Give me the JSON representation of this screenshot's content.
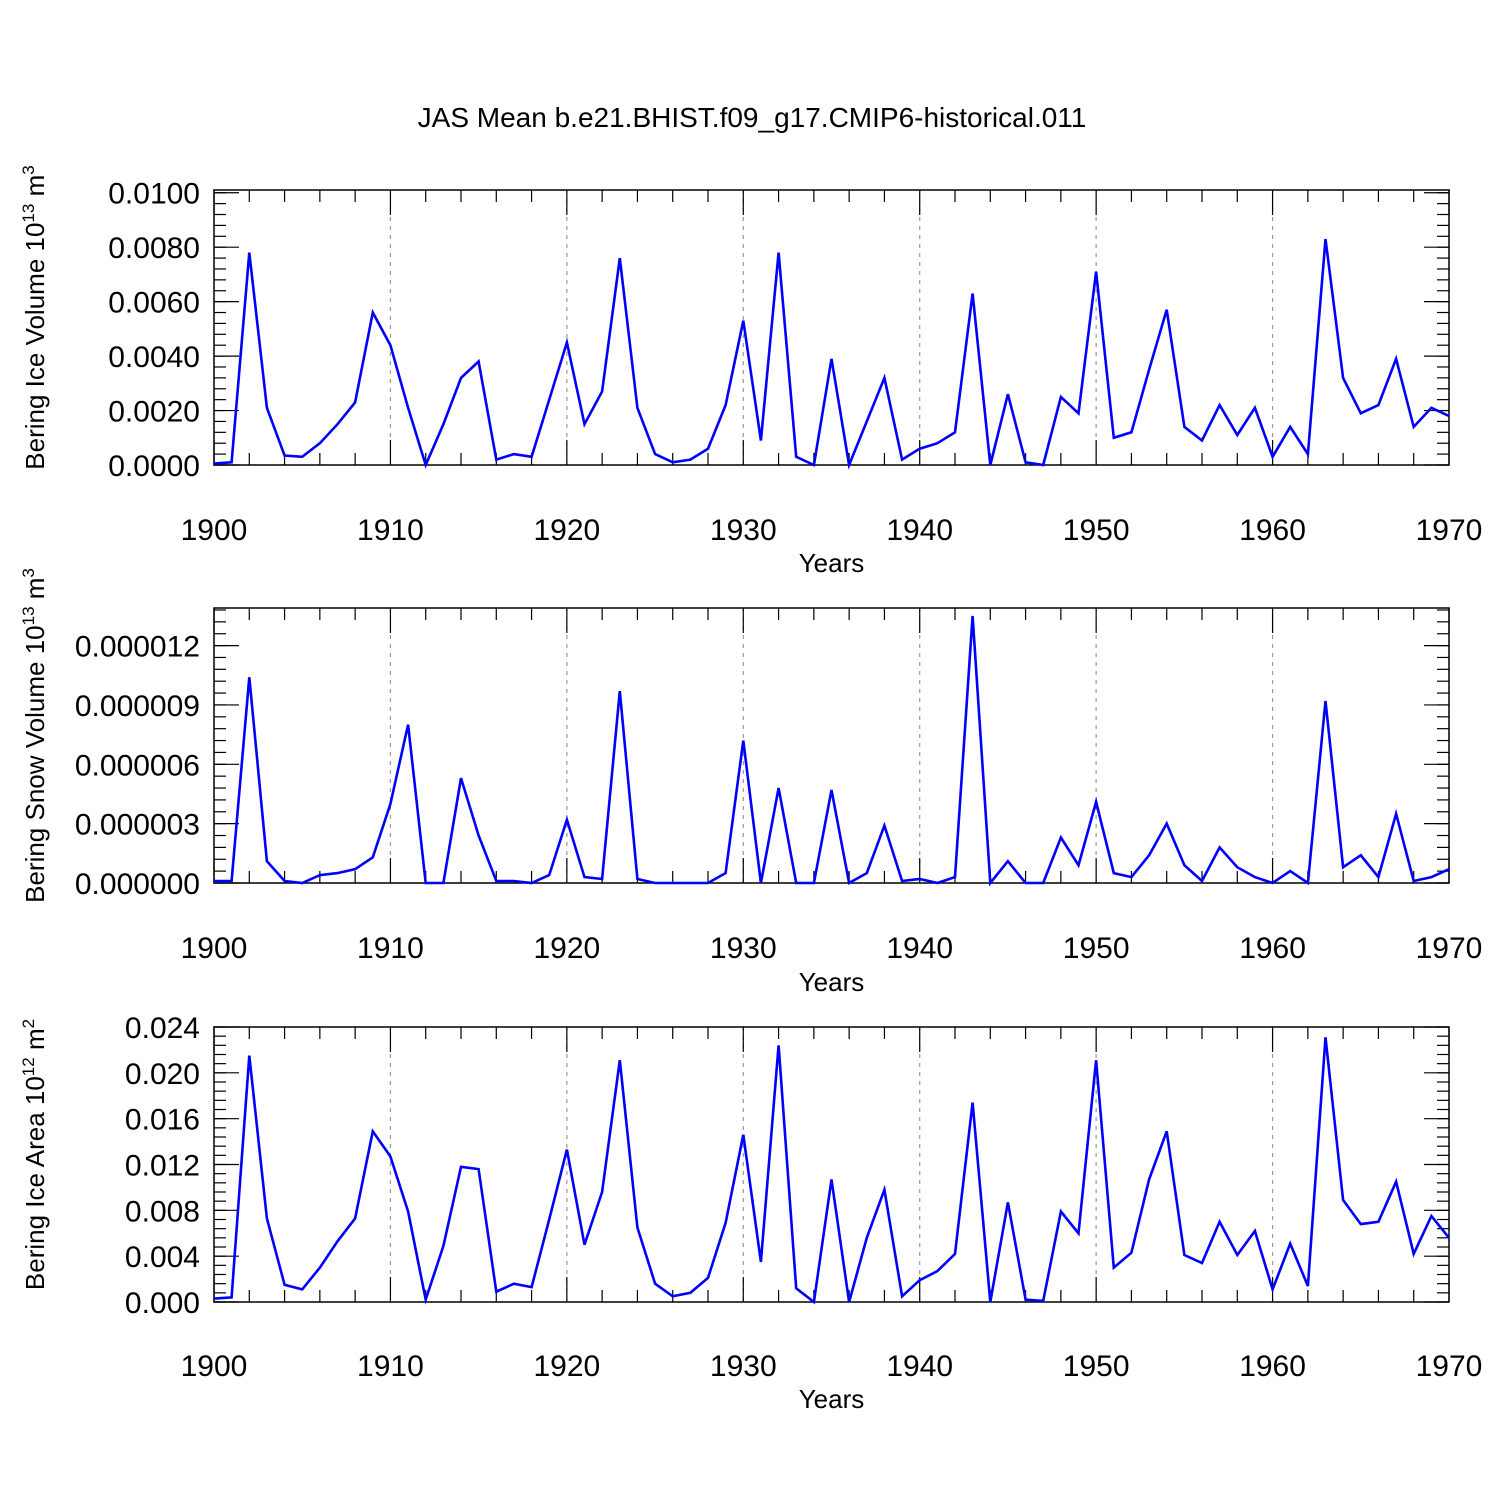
{
  "title": "JAS Mean b.e21.BHIST.f09_g17.CMIP6-historical.011",
  "line_color": "#0000ff",
  "chart_data": [
    {
      "type": "line",
      "ylabel": "Bering Ice Volume 10",
      "ylabel_sup": "13",
      "ylabel_unit": " m",
      "ylabel_unit_sup": "3",
      "xlabel": "Years",
      "xlim": [
        1900,
        1970
      ],
      "ylim": [
        0.0,
        0.0101
      ],
      "xticks": [
        1900,
        1910,
        1920,
        1930,
        1940,
        1950,
        1960,
        1970
      ],
      "yticks": [
        0.0,
        0.002,
        0.004,
        0.006,
        0.008,
        0.01
      ],
      "ytick_labels": [
        "0.0000",
        "0.0020",
        "0.0040",
        "0.0060",
        "0.0080",
        "0.0100"
      ],
      "grid": "vertical dashed at major x ticks",
      "x": [
        1900,
        1901,
        1902,
        1903,
        1904,
        1905,
        1906,
        1907,
        1908,
        1909,
        1910,
        1911,
        1912,
        1913,
        1914,
        1915,
        1916,
        1917,
        1918,
        1919,
        1920,
        1921,
        1922,
        1923,
        1924,
        1925,
        1926,
        1927,
        1928,
        1929,
        1930,
        1931,
        1932,
        1933,
        1934,
        1935,
        1936,
        1937,
        1938,
        1939,
        1940,
        1941,
        1942,
        1943,
        1944,
        1945,
        1946,
        1947,
        1948,
        1949,
        1950,
        1951,
        1952,
        1953,
        1954,
        1955,
        1956,
        1957,
        1958,
        1959,
        1960,
        1961,
        1962,
        1963,
        1964,
        1965,
        1966,
        1967,
        1968,
        1969,
        1970
      ],
      "y": [
        5e-05,
        0.0001,
        0.0078,
        0.0021,
        0.00035,
        0.0003,
        0.0008,
        0.0015,
        0.0023,
        0.0056,
        0.0044,
        0.0021,
        0.0,
        0.0015,
        0.0032,
        0.0038,
        0.0002,
        0.0004,
        0.0003,
        0.0024,
        0.0045,
        0.0015,
        0.0027,
        0.0076,
        0.0021,
        0.0004,
        0.0001,
        0.0002,
        0.0006,
        0.0022,
        0.0053,
        0.0009,
        0.0078,
        0.0003,
        0.0,
        0.0039,
        0.0,
        0.0016,
        0.0032,
        0.0002,
        0.0006,
        0.0008,
        0.0012,
        0.0063,
        0.0,
        0.0026,
        0.0001,
        0.0,
        0.0025,
        0.0019,
        0.0071,
        0.001,
        0.0012,
        0.0035,
        0.0057,
        0.0014,
        0.0009,
        0.0022,
        0.0011,
        0.0021,
        0.0003,
        0.0014,
        0.0004,
        0.0083,
        0.0032,
        0.0019,
        0.0022,
        0.0039,
        0.0014,
        0.0021,
        0.0018
      ]
    },
    {
      "type": "line",
      "ylabel": "Bering Snow Volume 10",
      "ylabel_sup": "13",
      "ylabel_unit": " m",
      "ylabel_unit_sup": "3",
      "xlabel": "Years",
      "xlim": [
        1900,
        1970
      ],
      "ylim": [
        0.0,
        1.39e-05
      ],
      "xticks": [
        1900,
        1910,
        1920,
        1930,
        1940,
        1950,
        1960,
        1970
      ],
      "yticks": [
        0.0,
        3e-06,
        6e-06,
        9e-06,
        1.2e-05
      ],
      "ytick_labels": [
        "0.000000",
        "0.000003",
        "0.000006",
        "0.000009",
        "0.000012"
      ],
      "grid": "vertical dashed at major x ticks",
      "x": [
        1900,
        1901,
        1902,
        1903,
        1904,
        1905,
        1906,
        1907,
        1908,
        1909,
        1910,
        1911,
        1912,
        1913,
        1914,
        1915,
        1916,
        1917,
        1918,
        1919,
        1920,
        1921,
        1922,
        1923,
        1924,
        1925,
        1926,
        1927,
        1928,
        1929,
        1930,
        1931,
        1932,
        1933,
        1934,
        1935,
        1936,
        1937,
        1938,
        1939,
        1940,
        1941,
        1942,
        1943,
        1944,
        1945,
        1946,
        1947,
        1948,
        1949,
        1950,
        1951,
        1952,
        1953,
        1954,
        1955,
        1956,
        1957,
        1958,
        1959,
        1960,
        1961,
        1962,
        1963,
        1964,
        1965,
        1966,
        1967,
        1968,
        1969,
        1970
      ],
      "y": [
        1e-07,
        1e-07,
        1.04e-05,
        1.1e-06,
        1e-07,
        0.0,
        4e-07,
        5e-07,
        7e-07,
        1.3e-06,
        4e-06,
        8e-06,
        0.0,
        0.0,
        5.3e-06,
        2.4e-06,
        1e-07,
        1e-07,
        0.0,
        4e-07,
        3.2e-06,
        3e-07,
        2e-07,
        9.7e-06,
        2e-07,
        0.0,
        0.0,
        0.0,
        0.0,
        5e-07,
        7.2e-06,
        0.0,
        4.8e-06,
        0.0,
        0.0,
        4.7e-06,
        0.0,
        5e-07,
        2.9e-06,
        1e-07,
        2e-07,
        0.0,
        3e-07,
        1.35e-05,
        0.0,
        1.1e-06,
        0.0,
        0.0,
        2.3e-06,
        9e-07,
        4.1e-06,
        5e-07,
        3e-07,
        1.4e-06,
        3e-06,
        9e-07,
        1e-07,
        1.8e-06,
        8e-07,
        3e-07,
        0.0,
        6e-07,
        0.0,
        9.2e-06,
        8e-07,
        1.4e-06,
        3e-07,
        3.5e-06,
        1e-07,
        3e-07,
        7e-07
      ]
    },
    {
      "type": "line",
      "ylabel": "Bering Ice Area 10",
      "ylabel_sup": "12",
      "ylabel_unit": " m",
      "ylabel_unit_sup": "2",
      "xlabel": "Years",
      "xlim": [
        1900,
        1970
      ],
      "ylim": [
        0.0,
        0.024
      ],
      "xticks": [
        1900,
        1910,
        1920,
        1930,
        1940,
        1950,
        1960,
        1970
      ],
      "yticks": [
        0.0,
        0.004,
        0.008,
        0.012,
        0.016,
        0.02,
        0.024
      ],
      "ytick_labels": [
        "0.000",
        "0.004",
        "0.008",
        "0.012",
        "0.016",
        "0.020",
        "0.024"
      ],
      "grid": "vertical dashed at major x ticks",
      "x": [
        1900,
        1901,
        1902,
        1903,
        1904,
        1905,
        1906,
        1907,
        1908,
        1909,
        1910,
        1911,
        1912,
        1913,
        1914,
        1915,
        1916,
        1917,
        1918,
        1919,
        1920,
        1921,
        1922,
        1923,
        1924,
        1925,
        1926,
        1927,
        1928,
        1929,
        1930,
        1931,
        1932,
        1933,
        1934,
        1935,
        1936,
        1937,
        1938,
        1939,
        1940,
        1941,
        1942,
        1943,
        1944,
        1945,
        1946,
        1947,
        1948,
        1949,
        1950,
        1951,
        1952,
        1953,
        1954,
        1955,
        1956,
        1957,
        1958,
        1959,
        1960,
        1961,
        1962,
        1963,
        1964,
        1965,
        1966,
        1967,
        1968,
        1969,
        1970
      ],
      "y": [
        0.0003,
        0.0004,
        0.0215,
        0.0073,
        0.0015,
        0.0011,
        0.003,
        0.0053,
        0.0073,
        0.0149,
        0.0127,
        0.0079,
        0.0002,
        0.0049,
        0.0118,
        0.0116,
        0.0009,
        0.0016,
        0.0013,
        0.0072,
        0.0133,
        0.005,
        0.0096,
        0.0211,
        0.0065,
        0.0016,
        0.0005,
        0.0008,
        0.0021,
        0.0069,
        0.0146,
        0.0035,
        0.0224,
        0.0012,
        0.0,
        0.0107,
        0.0,
        0.0056,
        0.0098,
        0.0005,
        0.0019,
        0.0027,
        0.0042,
        0.0174,
        0.0,
        0.0087,
        0.0002,
        0.0001,
        0.0079,
        0.006,
        0.0211,
        0.003,
        0.0043,
        0.0107,
        0.0149,
        0.0041,
        0.0034,
        0.007,
        0.0041,
        0.0062,
        0.0011,
        0.0051,
        0.0014,
        0.0231,
        0.0089,
        0.0068,
        0.007,
        0.0105,
        0.0042,
        0.0075,
        0.0056
      ]
    }
  ]
}
